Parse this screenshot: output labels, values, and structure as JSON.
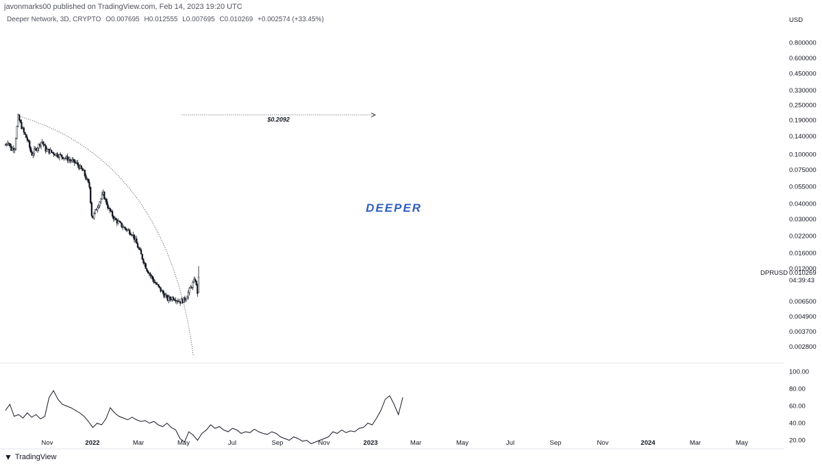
{
  "header": {
    "published_by": "javonmarks00 published on TradingView.com, Feb 14, 2023 19:20 UTC",
    "symbol_desc": "Deeper Network, 3D, CRYPTO",
    "open": "O0.007695",
    "high": "H0.012555",
    "low": "L0.007695",
    "close": "C0.010269",
    "change": "+0.002574 (+33.45%)"
  },
  "footer": {
    "brand": "TradingView",
    "logo_icon": "tradingview-logo-icon"
  },
  "watermark": {
    "text": "DEEPER",
    "color": "#2f5fc0"
  },
  "chart_data": [
    {
      "type": "candlestick",
      "title": "Deeper Network, 3D, CRYPTO",
      "symbol": "DPRUSD",
      "currency": "USD",
      "scale": "log",
      "grid": false,
      "ylim": [
        0.0022,
        1.0
      ],
      "last_price": "0.010269",
      "countdown": "04:39:43",
      "y_ticks": [
        {
          "v": 0.8,
          "label": "0.800000"
        },
        {
          "v": 0.6,
          "label": "0.600000"
        },
        {
          "v": 0.45,
          "label": "0.450000"
        },
        {
          "v": 0.33,
          "label": "0.330000"
        },
        {
          "v": 0.25,
          "label": "0.250000"
        },
        {
          "v": 0.19,
          "label": "0.190000"
        },
        {
          "v": 0.14,
          "label": "0.140000"
        },
        {
          "v": 0.1,
          "label": "0.100000"
        },
        {
          "v": 0.075,
          "label": "0.075000"
        },
        {
          "v": 0.055,
          "label": "0.055000"
        },
        {
          "v": 0.04,
          "label": "0.040000"
        },
        {
          "v": 0.03,
          "label": "0.030000"
        },
        {
          "v": 0.022,
          "label": "0.022000"
        },
        {
          "v": 0.016,
          "label": "0.016000"
        },
        {
          "v": 0.012,
          "label": "0.012000"
        },
        {
          "v": 0.0065,
          "label": "0.006500"
        },
        {
          "v": 0.0049,
          "label": "0.004900"
        },
        {
          "v": 0.0037,
          "label": "0.003700"
        },
        {
          "v": 0.0028,
          "label": "0.002800"
        }
      ],
      "x_labels": [
        "Nov",
        "2022",
        "Mar",
        "May",
        "Jul",
        "Sep",
        "Nov",
        "2023",
        "Mar",
        "May",
        "Jul",
        "Sep",
        "Nov",
        "2024",
        "Mar",
        "May"
      ],
      "x_label_bold": [
        "2022",
        "2023",
        "2024"
      ],
      "x_start": "2021-09-28",
      "price_path": [
        [
          "2021-09-28",
          0.12
        ],
        [
          "2021-10-05",
          0.13
        ],
        [
          "2021-10-12",
          0.11
        ],
        [
          "2021-10-22",
          0.115
        ],
        [
          "2021-10-31",
          0.2
        ],
        [
          "2021-11-15",
          0.15
        ],
        [
          "2021-11-25",
          0.13
        ],
        [
          "2021-12-05",
          0.1
        ],
        [
          "2021-12-25",
          0.12
        ],
        [
          "2022-01-01",
          0.13
        ],
        [
          "2022-01-10",
          0.11
        ],
        [
          "2022-02-10",
          0.1
        ],
        [
          "2022-03-01",
          0.095
        ],
        [
          "2022-04-01",
          0.085
        ],
        [
          "2022-04-20",
          0.072
        ],
        [
          "2022-05-05",
          0.055
        ],
        [
          "2022-05-12",
          0.03
        ],
        [
          "2022-05-25",
          0.038
        ],
        [
          "2022-06-10",
          0.048
        ],
        [
          "2022-06-25",
          0.036
        ],
        [
          "2022-07-10",
          0.03
        ],
        [
          "2022-08-01",
          0.026
        ],
        [
          "2022-08-25",
          0.023
        ],
        [
          "2022-09-15",
          0.016
        ],
        [
          "2022-10-01",
          0.012
        ],
        [
          "2022-10-20",
          0.0095
        ],
        [
          "2022-11-10",
          0.0078
        ],
        [
          "2022-11-25",
          0.0068
        ],
        [
          "2022-12-10",
          0.007
        ],
        [
          "2022-12-28",
          0.0065
        ],
        [
          "2023-01-10",
          0.0068
        ],
        [
          "2023-01-25",
          0.0085
        ],
        [
          "2023-02-05",
          0.0098
        ],
        [
          "2023-02-11",
          0.0077
        ],
        [
          "2023-02-14",
          0.010269
        ]
      ],
      "trendline": {
        "from": [
          "2021-11-01",
          0.205
        ],
        "to": [
          "2023-01-31",
          0.0024
        ],
        "style": "dotted"
      },
      "target_line": {
        "from": [
          "2023-01-01",
          0.2092
        ],
        "to": [
          "2024-05-20",
          0.2092
        ],
        "label": "$0.2092",
        "style": "dotted",
        "arrow": true
      }
    },
    {
      "type": "line",
      "name": "oscillator",
      "ylim": [
        10,
        110
      ],
      "y_ticks": [
        {
          "v": 100,
          "label": "100.00"
        },
        {
          "v": 80,
          "label": "80.00"
        },
        {
          "v": 60,
          "label": "60.00"
        },
        {
          "v": 40,
          "label": "40.00"
        },
        {
          "v": 20,
          "label": "20.00"
        }
      ],
      "values": [
        55,
        62,
        48,
        50,
        46,
        52,
        47,
        50,
        45,
        48,
        70,
        78,
        68,
        62,
        60,
        58,
        55,
        52,
        48,
        42,
        35,
        40,
        38,
        45,
        58,
        52,
        48,
        46,
        44,
        47,
        44,
        42,
        43,
        40,
        42,
        38,
        36,
        40,
        35,
        32,
        22,
        18,
        30,
        26,
        20,
        28,
        32,
        38,
        34,
        36,
        32,
        30,
        34,
        32,
        28,
        30,
        29,
        33,
        30,
        28,
        27,
        30,
        28,
        24,
        22,
        20,
        24,
        22,
        19,
        20,
        16,
        18,
        20,
        22,
        24,
        30,
        28,
        32,
        29,
        31,
        30,
        34,
        35,
        40,
        38,
        46,
        55,
        68,
        72,
        62,
        50,
        70
      ]
    }
  ]
}
